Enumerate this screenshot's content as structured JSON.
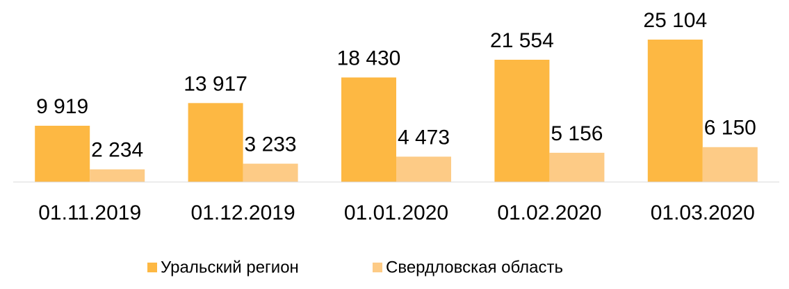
{
  "chart_data": {
    "type": "bar",
    "categories": [
      "01.11.2019",
      "01.12.2019",
      "01.01.2020",
      "01.02.2020",
      "01.03.2020"
    ],
    "series": [
      {
        "name": "Уральский регион",
        "color": "#fdb843",
        "values": [
          9919,
          13917,
          18430,
          21554,
          25104
        ],
        "value_labels": [
          "9 919",
          "13 917",
          "18 430",
          "21 554",
          "25 104"
        ]
      },
      {
        "name": "Свердловская область",
        "color": "#fdcb86",
        "values": [
          2234,
          3233,
          4473,
          5156,
          6150
        ],
        "value_labels": [
          "2 234",
          "3 233",
          "4 473",
          "5 156",
          "6 150"
        ]
      }
    ],
    "legend": "bottom"
  }
}
